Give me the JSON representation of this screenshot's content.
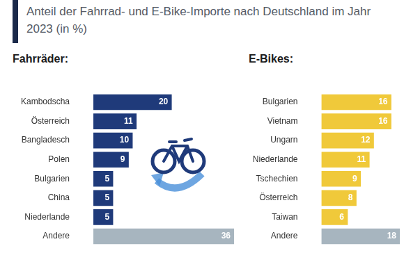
{
  "subtitle": "Anteil der Fahrrad- und E-Bike-Importe nach Deutschland im Jahr 2023 (in %)",
  "chart_data": [
    {
      "type": "bar",
      "title": "Fahrräder:",
      "orientation": "horizontal",
      "categories": [
        "Kambodscha",
        "Österreich",
        "Bangladesch",
        "Polen",
        "Bulgarien",
        "China",
        "Niederlande",
        "Andere"
      ],
      "values": [
        20,
        11,
        10,
        9,
        5,
        5,
        5,
        36
      ],
      "colors": [
        "#1f3a7a",
        "#1f3a7a",
        "#1f3a7a",
        "#1f3a7a",
        "#1f3a7a",
        "#1f3a7a",
        "#1f3a7a",
        "#a7b5bf"
      ],
      "xlim": [
        0,
        36
      ],
      "grid": false,
      "data_labels": true,
      "tick_labels": "y"
    },
    {
      "type": "bar",
      "title": "E-Bikes:",
      "orientation": "horizontal",
      "categories": [
        "Bulgarien",
        "Vietnam",
        "Ungarn",
        "Niederlande",
        "Tschechien",
        "Österreich",
        "Taiwan",
        "Andere"
      ],
      "values": [
        16,
        16,
        12,
        11,
        9,
        8,
        6,
        18
      ],
      "colors": [
        "#f0c93a",
        "#f0c93a",
        "#f0c93a",
        "#f0c93a",
        "#f0c93a",
        "#f0c93a",
        "#f0c93a",
        "#a7b5bf"
      ],
      "xlim": [
        0,
        18
      ],
      "grid": false,
      "data_labels": true,
      "tick_labels": "y"
    }
  ]
}
